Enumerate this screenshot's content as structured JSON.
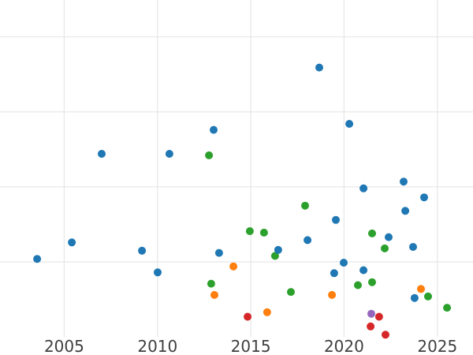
{
  "page": {
    "background": "#ffffff",
    "title": ""
  },
  "style": {
    "grid_color": "#e8e8e8",
    "tick_color": "#3f3f3f",
    "tick_font_size": 20,
    "marker_radius": 5
  },
  "chart_data": {
    "type": "scatter",
    "title": "",
    "subtitle": "",
    "xlabel": "",
    "ylabel": "",
    "grid": true,
    "legend": "none",
    "x_ticks": [
      2005,
      2010,
      2015,
      2020,
      2025
    ],
    "x_tick_labels": [
      "2005",
      "2010",
      "2015",
      "2020",
      "2025"
    ],
    "y_gridlines": [
      1,
      2,
      3,
      4
    ],
    "baseline": 0,
    "xlim": [
      2001.56,
      2026.91
    ],
    "ylim": [
      -0.24,
      4.49
    ],
    "series": [
      {
        "name": "green",
        "color": "#2ca02c",
        "points": [
          [
            2012.76,
            2.42
          ],
          [
            2012.88,
            0.71
          ],
          [
            2014.95,
            1.41
          ],
          [
            2015.71,
            1.39
          ],
          [
            2016.3,
            1.08
          ],
          [
            2017.15,
            0.6
          ],
          [
            2017.91,
            1.75
          ],
          [
            2020.74,
            0.69
          ],
          [
            2021.5,
            1.38
          ],
          [
            2021.5,
            0.73
          ],
          [
            2022.18,
            1.18
          ],
          [
            2024.5,
            0.54
          ],
          [
            2025.52,
            0.39
          ]
        ]
      },
      {
        "name": "orange",
        "color": "#ff7f0e",
        "points": [
          [
            2013.05,
            0.56
          ],
          [
            2014.07,
            0.94
          ],
          [
            2015.88,
            0.33
          ],
          [
            2019.35,
            0.56
          ],
          [
            2024.12,
            0.64
          ]
        ]
      },
      {
        "name": "purple",
        "color": "#9467bd",
        "points": [
          [
            2021.46,
            0.31
          ]
        ]
      },
      {
        "name": "red",
        "color": "#d62728",
        "points": [
          [
            2014.83,
            0.27
          ],
          [
            2021.42,
            0.14
          ],
          [
            2021.88,
            0.27
          ],
          [
            2022.22,
            0.03
          ]
        ]
      },
      {
        "name": "blue",
        "color": "#1f77b4",
        "points": [
          [
            2003.55,
            1.04
          ],
          [
            2005.41,
            1.26
          ],
          [
            2007.01,
            2.44
          ],
          [
            2009.17,
            1.15
          ],
          [
            2010.01,
            0.86
          ],
          [
            2010.64,
            2.44
          ],
          [
            2013.01,
            2.76
          ],
          [
            2013.3,
            1.12
          ],
          [
            2016.47,
            1.16
          ],
          [
            2018.04,
            1.29
          ],
          [
            2018.67,
            3.59
          ],
          [
            2019.47,
            0.85
          ],
          [
            2019.56,
            1.56
          ],
          [
            2019.98,
            0.99
          ],
          [
            2020.28,
            2.84
          ],
          [
            2021.04,
            1.98
          ],
          [
            2021.04,
            0.89
          ],
          [
            2022.39,
            1.33
          ],
          [
            2023.19,
            2.07
          ],
          [
            2023.28,
            1.68
          ],
          [
            2023.7,
            1.2
          ],
          [
            2023.78,
            0.52
          ],
          [
            2024.29,
            1.86
          ]
        ]
      }
    ]
  }
}
